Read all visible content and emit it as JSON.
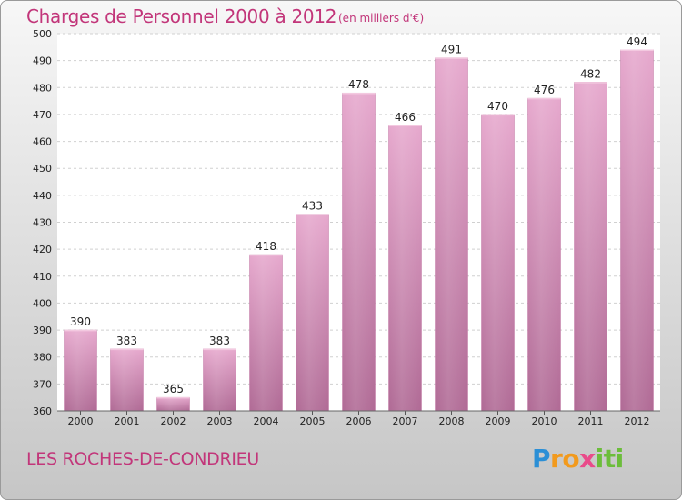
{
  "title": "Charges de Personnel 2000 à 2012",
  "unit_note": "(en milliers d'€)",
  "commune": "LES ROCHES-DE-CONDRIEU",
  "logo": {
    "parts": [
      "P",
      "ro",
      "x",
      "iti"
    ],
    "colors": [
      "#2b8fd6",
      "#f29a1d",
      "#e94b8a",
      "#6cbd3b"
    ]
  },
  "chart_data": {
    "type": "bar",
    "title": "Charges de Personnel 2000 à 2012",
    "subtitle": "(en milliers d'€)",
    "categories": [
      "2000",
      "2001",
      "2002",
      "2003",
      "2004",
      "2005",
      "2006",
      "2007",
      "2008",
      "2009",
      "2010",
      "2011",
      "2012"
    ],
    "values": [
      390,
      383,
      365,
      383,
      418,
      433,
      478,
      466,
      491,
      470,
      476,
      482,
      494
    ],
    "ylim": [
      360,
      500
    ],
    "yticks": [
      360,
      370,
      380,
      390,
      400,
      410,
      420,
      430,
      440,
      450,
      460,
      470,
      480,
      490,
      500
    ],
    "grid": true,
    "data_labels": true,
    "bar_color": "#d88db5"
  }
}
